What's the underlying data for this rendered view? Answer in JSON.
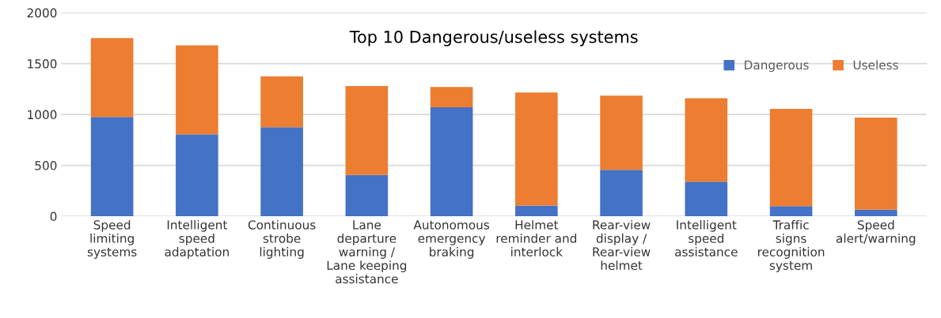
{
  "chart_data": {
    "type": "bar",
    "stacked": true,
    "title": "Top 10 Dangerous/useless systems",
    "categories": [
      "Speed limiting systems",
      "Intelligent speed adaptation",
      "Continuous strobe lighting",
      "Lane departure warning / Lane keeping assistance",
      "Autonomous emergency braking",
      "Helmet reminder and interlock",
      "Rear-view display / Rear-view helmet",
      "Intelligent speed assistance",
      "Traffic signs recognition system",
      "Speed alert/warning"
    ],
    "series": [
      {
        "name": "Dangerous",
        "color": "#4472c4",
        "values": [
          975,
          805,
          875,
          405,
          1070,
          105,
          455,
          340,
          100,
          65
        ]
      },
      {
        "name": "Useless",
        "color": "#ed7d31",
        "values": [
          775,
          875,
          500,
          875,
          200,
          1110,
          730,
          820,
          955,
          905
        ]
      }
    ],
    "ylim": [
      0,
      2000
    ],
    "yticks": [
      0,
      500,
      1000,
      1500,
      2000
    ],
    "grid": "y",
    "legend": "top right"
  }
}
